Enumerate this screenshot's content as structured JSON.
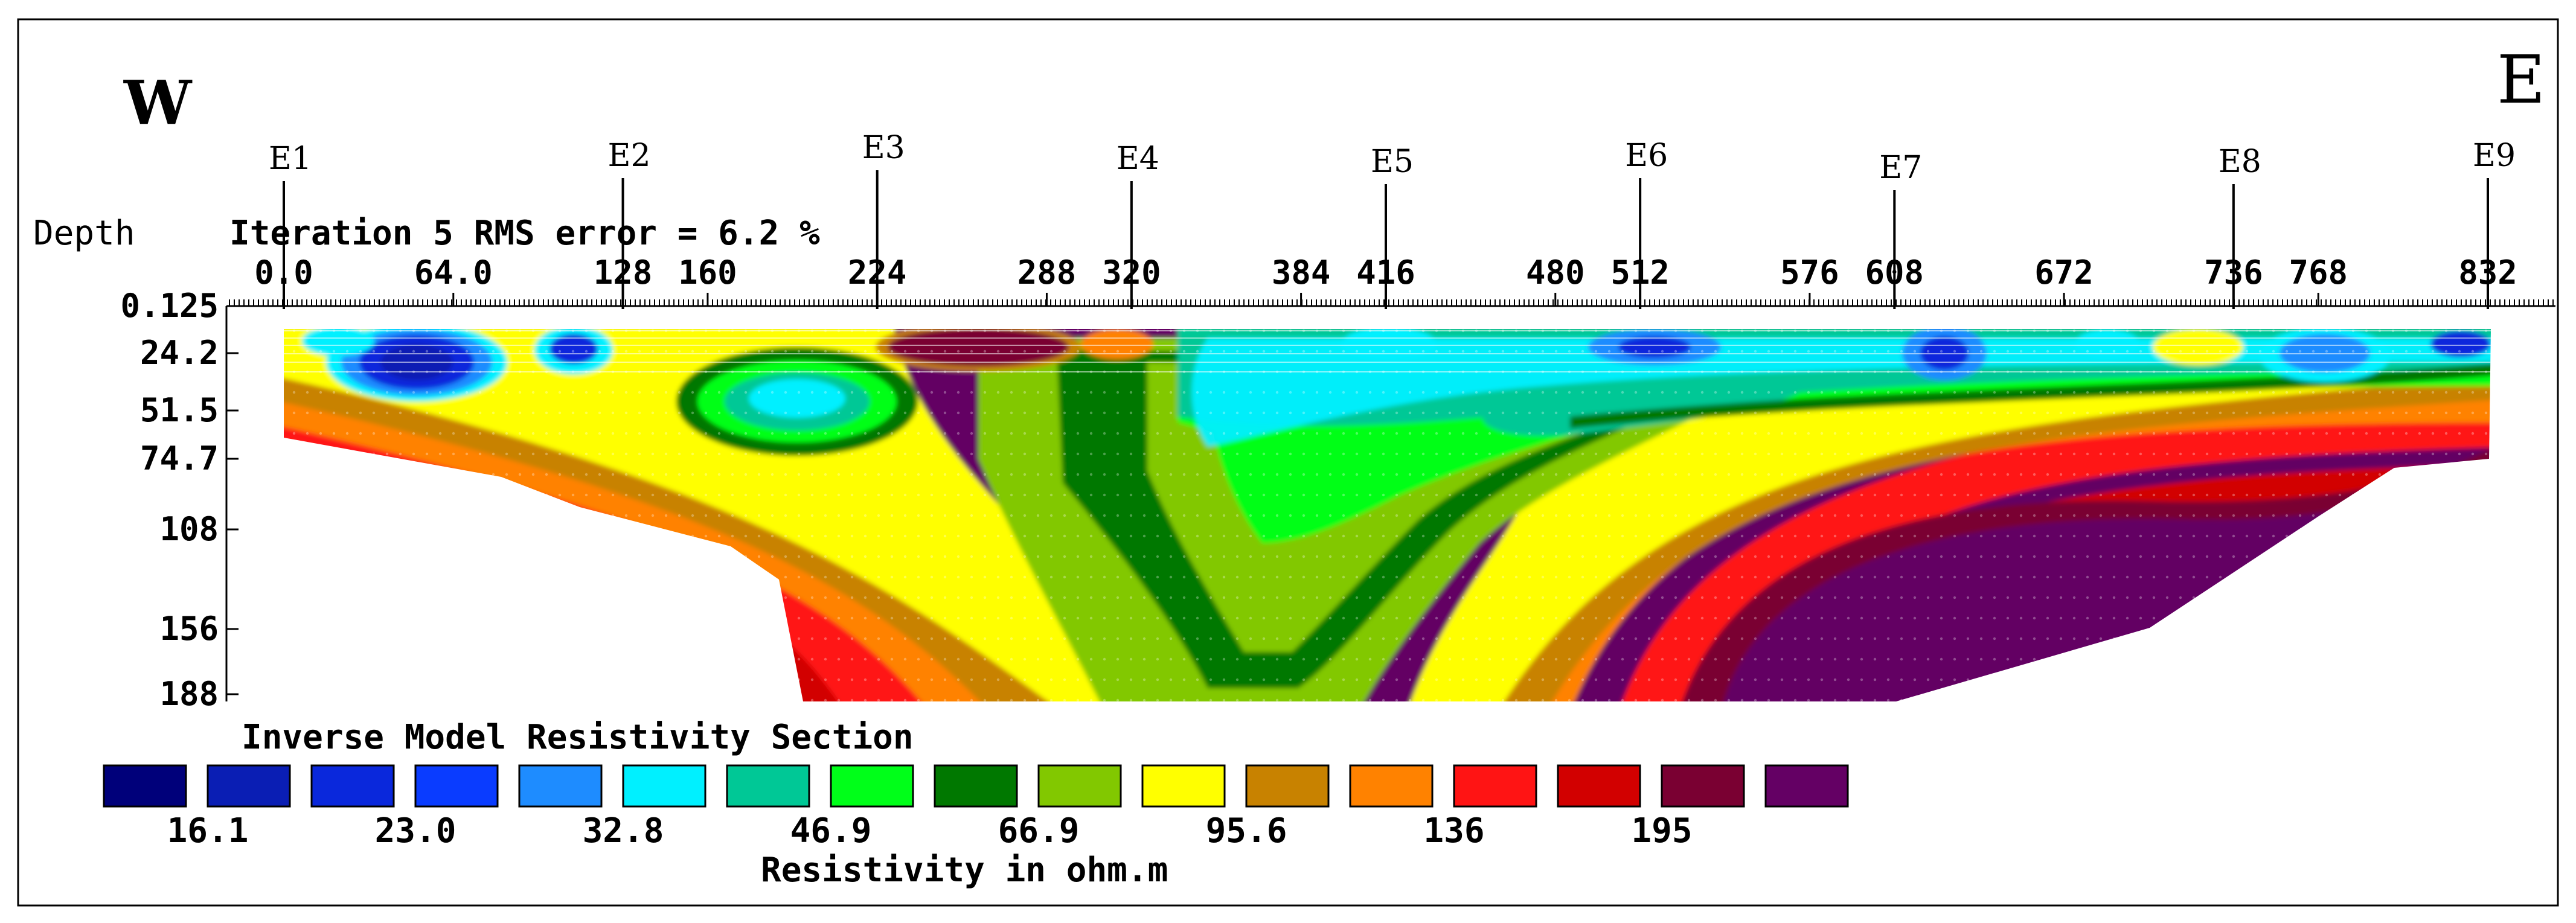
{
  "compass": {
    "west": "W",
    "east": "E"
  },
  "electrodes": [
    {
      "label": "E1",
      "x": 0
    },
    {
      "label": "E2",
      "x": 128
    },
    {
      "label": "E3",
      "x": 224
    },
    {
      "label": "E4",
      "x": 320
    },
    {
      "label": "E5",
      "x": 416
    },
    {
      "label": "E6",
      "x": 512
    },
    {
      "label": "E7",
      "x": 608
    },
    {
      "label": "E8",
      "x": 736
    },
    {
      "label": "E9",
      "x": 832
    }
  ],
  "header": {
    "depth_label": "Depth",
    "iteration_text": "Iteration 5 RMS error = 6.2 %"
  },
  "chart_data": {
    "type": "heatmap",
    "title": "Inverse Model Resistivity Section",
    "x_ticks": [
      "0.0",
      "64.0",
      "128",
      "160",
      "224",
      "288",
      "320",
      "384",
      "416",
      "480",
      "512",
      "576",
      "608",
      "672",
      "736",
      "768",
      "832"
    ],
    "x_tick_values": [
      0,
      64,
      128,
      160,
      224,
      288,
      320,
      384,
      416,
      480,
      512,
      576,
      608,
      672,
      736,
      768,
      832
    ],
    "xlim": [
      0,
      832
    ],
    "depth_ticks": [
      "0.125",
      "24.2",
      "51.5",
      "74.7",
      "108",
      "156",
      "188"
    ],
    "depth_values": [
      0.125,
      24.2,
      51.5,
      74.7,
      108,
      156,
      188
    ],
    "ylim": [
      0.125,
      188
    ],
    "colorbar": {
      "label": "Resistivity in ohm.m",
      "colors": [
        "#00007a",
        "#0a1eb4",
        "#0a28dc",
        "#0a3cff",
        "#1e8cff",
        "#00f0ff",
        "#00c896",
        "#00ff19",
        "#007800",
        "#82c800",
        "#ffff00",
        "#c88200",
        "#ff8200",
        "#ff1414",
        "#d20000",
        "#7a0032",
        "#640064"
      ],
      "tick_labels": [
        "16.1",
        "23.0",
        "32.8",
        "46.9",
        "66.9",
        "95.6",
        "136",
        "195"
      ]
    }
  }
}
